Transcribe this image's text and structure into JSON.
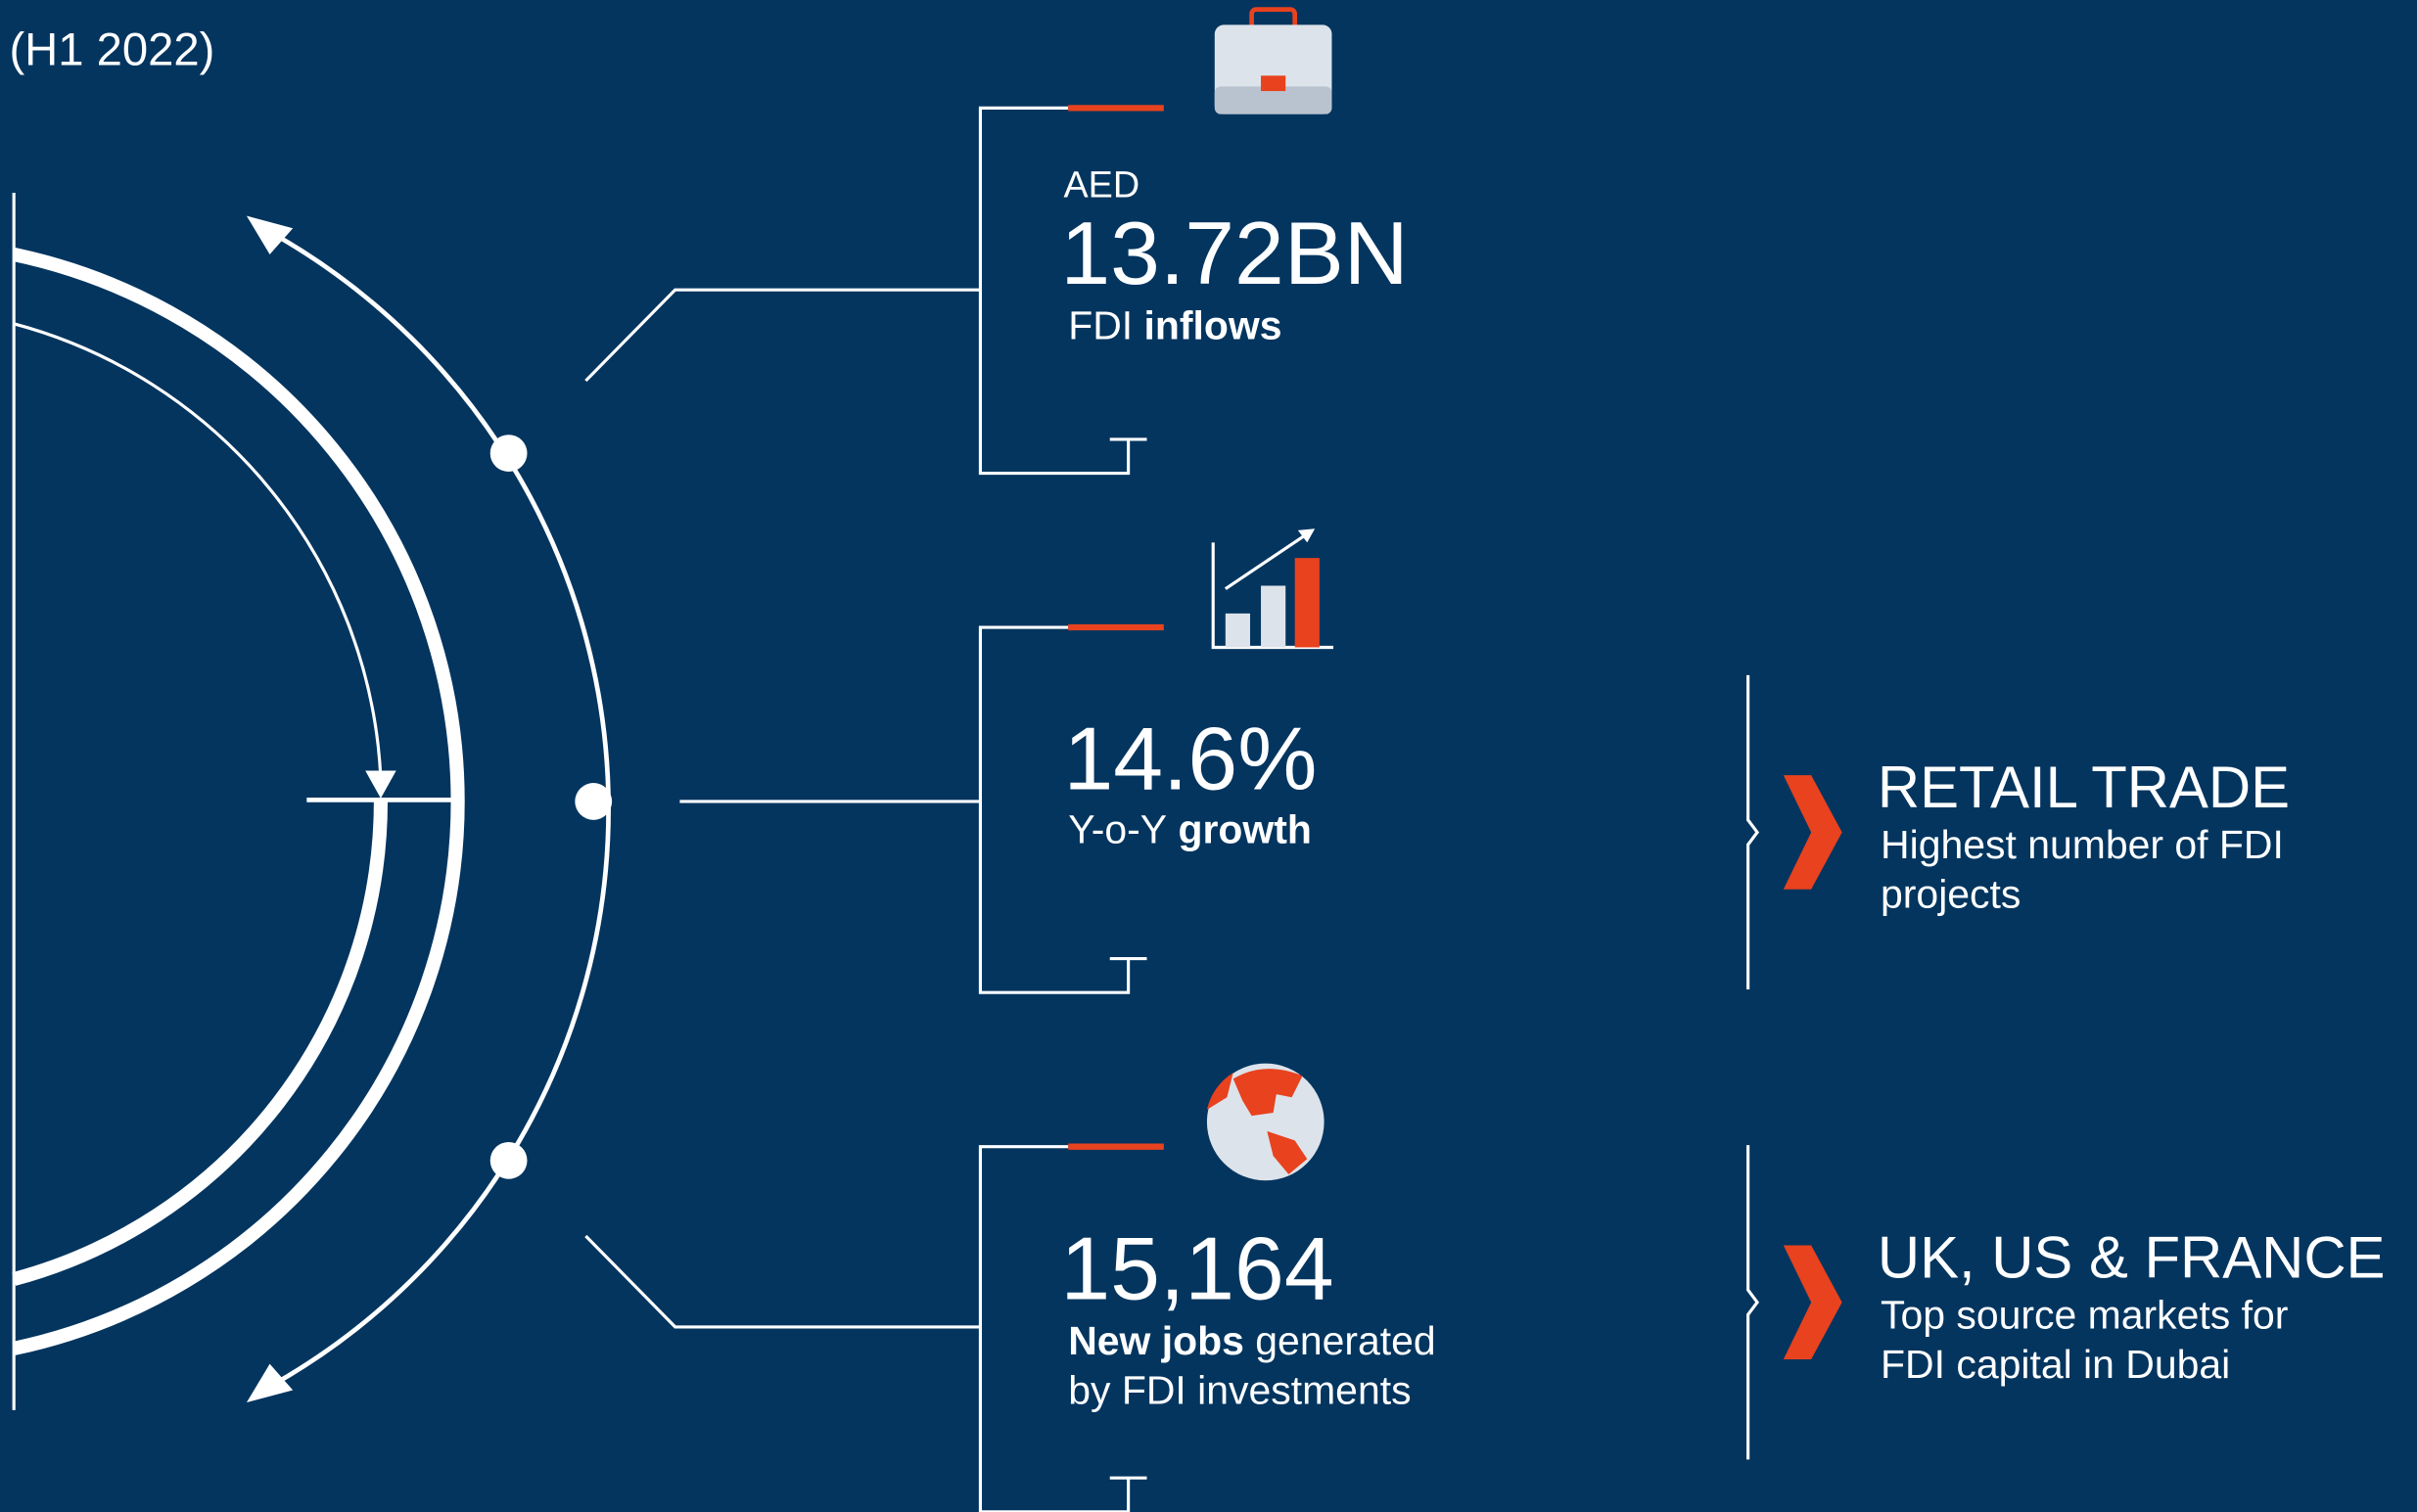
{
  "header": {
    "period": "(H1 2022)"
  },
  "stats": [
    {
      "prefix": "AED",
      "value": "13.72BN",
      "label_plain": "FDI",
      "label_bold": "inflows"
    },
    {
      "value": "14.6%",
      "label_plain": "Y-o-Y",
      "label_bold": "growth"
    },
    {
      "value": "15,164",
      "label_bold": "New jobs",
      "label_plain": "generated",
      "label_line2": "by FDI investments"
    }
  ],
  "highlights": [
    {
      "title": "RETAIL TRADE",
      "lines": [
        "Highest number of FDI",
        "projects"
      ]
    },
    {
      "title": "UK, US & FRANCE",
      "lines": [
        "Top source markets for",
        "FDI capital in Dubai"
      ]
    }
  ]
}
